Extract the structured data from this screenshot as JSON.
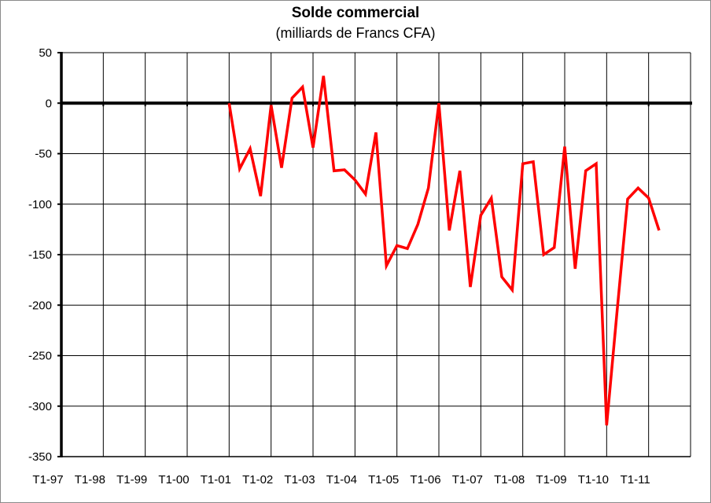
{
  "chart_data": {
    "type": "line",
    "title": "Solde commercial",
    "subtitle": "(milliards de Francs CFA)",
    "xlabel": "",
    "ylabel": "",
    "ylim": [
      -350,
      50
    ],
    "yticks": [
      50,
      0,
      -50,
      -100,
      -150,
      -200,
      -250,
      -300,
      -350
    ],
    "xticks": [
      "T1-97",
      "T1-98",
      "T1-99",
      "T1-00",
      "T1-01",
      "T1-02",
      "T1-03",
      "T1-04",
      "T1-05",
      "T1-06",
      "T1-07",
      "T1-08",
      "T1-09",
      "T1-10",
      "T1-11"
    ],
    "grid": true,
    "series": [
      {
        "color": "#ff0000",
        "start_quarter_index": 16,
        "values": [
          0,
          -65,
          -45,
          -92,
          -2,
          -64,
          5,
          16,
          -44,
          27,
          -67,
          -66,
          -76,
          -90,
          -29,
          -161,
          -141,
          -144,
          -120,
          -84,
          0,
          -126,
          -67,
          -182,
          -111,
          -94,
          -172,
          -185,
          -60,
          -58,
          -150,
          -143,
          -43,
          -164,
          -67,
          -60,
          -319,
          -205,
          -95,
          -84,
          -94,
          -126
        ]
      }
    ]
  }
}
